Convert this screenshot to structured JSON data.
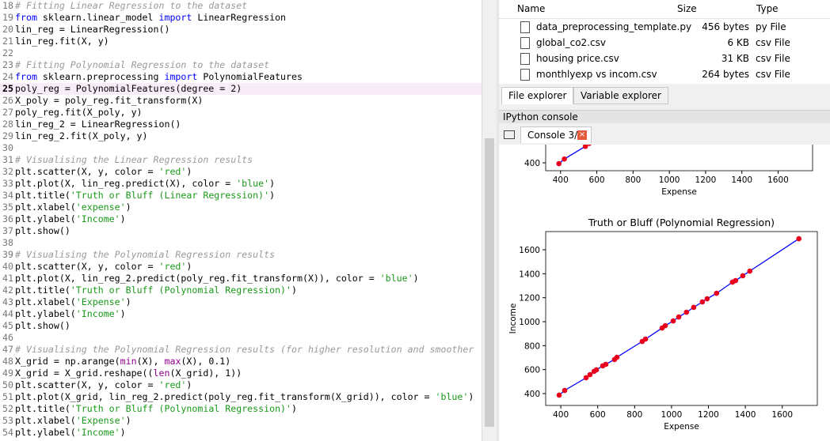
{
  "editor": {
    "current_line": 25,
    "lines": [
      {
        "number": 18,
        "code": "# Fitting Linear Regression to the dataset"
      },
      {
        "number": 19,
        "code": "from sklearn.linear_model import LinearRegression"
      },
      {
        "number": 20,
        "code": "lin_reg = LinearRegression()"
      },
      {
        "number": 21,
        "code": "lin_reg.fit(X, y)"
      },
      {
        "number": 22
      },
      {
        "number": 23,
        "code": "# Fitting Polynomial Regression to the dataset"
      },
      {
        "number": 24,
        "code": "from sklearn.preprocessing import PolynomialFeatures"
      },
      {
        "number": 25,
        "code": "poly_reg = PolynomialFeatures(degree = 2)"
      },
      {
        "number": 26,
        "code": "X_poly = poly_reg.fit_transform(X)"
      },
      {
        "number": 27,
        "code": "poly_reg.fit(X_poly, y)"
      },
      {
        "number": 28,
        "code": "lin_reg_2 = LinearRegression()"
      },
      {
        "number": 29,
        "code": "lin_reg_2.fit(X_poly, y)"
      },
      {
        "number": 30
      },
      {
        "number": 31,
        "code": "# Visualising the Linear Regression results"
      },
      {
        "number": 32,
        "code": "plt.scatter(X, y, color = 'red')"
      },
      {
        "number": 33,
        "code": "plt.plot(X, lin_reg.predict(X), color = 'blue')"
      },
      {
        "number": 34,
        "code": "plt.title('Truth or Bluff (Linear Regression)')"
      },
      {
        "number": 35,
        "code": "plt.xlabel('expense')"
      },
      {
        "number": 36,
        "code": "plt.ylabel('Income')"
      },
      {
        "number": 37,
        "code": "plt.show()"
      },
      {
        "number": 38
      },
      {
        "number": 39,
        "code": "# Visualising the Polynomial Regression results"
      },
      {
        "number": 40,
        "code": "plt.scatter(X, y, color = 'red')"
      },
      {
        "number": 41,
        "code": "plt.plot(X, lin_reg_2.predict(poly_reg.fit_transform(X)), color = 'blue')"
      },
      {
        "number": 42,
        "code": "plt.title('Truth or Bluff (Polynomial Regression)')"
      },
      {
        "number": 43,
        "code": "plt.xlabel('Expense')"
      },
      {
        "number": 44,
        "code": "plt.ylabel('Income')"
      },
      {
        "number": 45,
        "code": "plt.show()"
      },
      {
        "number": 46
      },
      {
        "number": 47,
        "code": "# Visualising the Polynomial Regression results (for higher resolution and smoother"
      },
      {
        "number": 48,
        "code": "X_grid = np.arange(min(X), max(X), 0.1)"
      },
      {
        "number": 49,
        "code": "X_grid = X_grid.reshape((len(X_grid), 1))"
      },
      {
        "number": 50,
        "code": "plt.scatter(X, y, color = 'red')"
      },
      {
        "number": 51,
        "code": "plt.plot(X_grid, lin_reg_2.predict(poly_reg.fit_transform(X_grid)), color = 'blue')"
      },
      {
        "number": 52,
        "code": "plt.title('Truth or Bluff (Polynomial Regression)')"
      },
      {
        "number": 53,
        "code": "plt.xlabel('Expense')"
      },
      {
        "number": 54,
        "code": "plt.ylabel('Income')"
      }
    ]
  },
  "file_explorer": {
    "columns": [
      "Name",
      "Size",
      "Type"
    ],
    "rows": [
      [
        "data_preprocessing_template.py",
        "456 bytes",
        "py File"
      ],
      [
        "global_co2.csv",
        "6 KB",
        "csv File"
      ],
      [
        "housing price.csv",
        "31 KB",
        "csv File"
      ],
      [
        "monthlyexp vs incom.csv",
        "264 bytes",
        "csv File"
      ]
    ]
  },
  "tabs": [
    "File explorer",
    "Variable explorer"
  ],
  "console": {
    "pane_title": "IPython console",
    "tab": "Console 3/A",
    "plots": [
      {
        "type": "scatter",
        "xlabel": "Expense",
        "color": "#e8001c",
        "line_color": "#0000ff",
        "x": [
          391,
          421,
          537,
          558
        ],
        "values": [
          393,
          432,
          537,
          562
        ],
        "xlim": [
          318,
          1790
        ],
        "ylim": [
          334,
          1786
        ],
        "xticks": [
          400,
          600,
          800,
          1000,
          1200,
          1400,
          1600
        ],
        "yticks": [
          400
        ]
      },
      {
        "type": "scatter",
        "title": "Truth or Bluff (Polynomial Regression)",
        "xlabel": "Expense",
        "ylabel": "Income",
        "color": "#e8001c",
        "line_color": "#0000ff",
        "x": [
          391,
          421,
          537,
          558,
          580,
          593,
          627,
          644,
          691,
          704,
          841,
          859,
          949,
          966,
          1009,
          1039,
          1081,
          1120,
          1167,
          1193,
          1244,
          1330,
          1347,
          1386,
          1424,
          1690
        ],
        "values": [
          387,
          426,
          532,
          558,
          585,
          598,
          631,
          644,
          684,
          703,
          835,
          855,
          947,
          967,
          1006,
          1039,
          1079,
          1119,
          1165,
          1191,
          1237,
          1330,
          1343,
          1383,
          1422,
          1692
        ],
        "xlim": [
          318,
          1790
        ],
        "ylim": [
          301,
          1752
        ],
        "xticks": [
          400,
          600,
          800,
          1000,
          1200,
          1400,
          1600
        ],
        "yticks": [
          400,
          600,
          800,
          1000,
          1200,
          1400,
          1600
        ]
      }
    ]
  }
}
